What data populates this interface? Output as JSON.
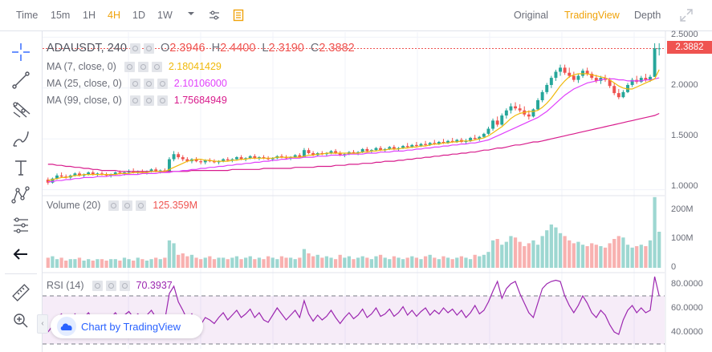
{
  "toolbar": {
    "time_label": "Time",
    "intervals": [
      "15m",
      "1H",
      "4H",
      "1D",
      "1W"
    ],
    "active_interval": "4H",
    "right_tabs": [
      "Original",
      "TradingView",
      "Depth"
    ],
    "active_right_tab": "TradingView"
  },
  "legend": {
    "symbol": "ADAUSDT, 240",
    "o_label": "O",
    "o_value": "2.3946",
    "h_label": "H",
    "h_value": "2.4400",
    "l_label": "L",
    "l_value": "2.3190",
    "c_label": "C",
    "c_value": "2.3882",
    "ma7_label": "MA (7, close, 0)",
    "ma7_value": "2.18041429",
    "ma25_label": "MA (25, close, 0)",
    "ma25_value": "2.10106000",
    "ma99_label": "MA (99, close, 0)",
    "ma99_value": "1.75684949",
    "volume_label": "Volume (20)",
    "volume_value": "125.359M",
    "rsi_label": "RSI (14)",
    "rsi_value": "70.3937"
  },
  "price_axis": [
    "2.5000",
    "2.0000",
    "1.5000",
    "1.0000"
  ],
  "volume_axis": [
    "200M",
    "100M",
    "0"
  ],
  "rsi_axis": [
    "80.0000",
    "60.0000",
    "40.0000"
  ],
  "last_price": "2.3882",
  "watermark_text": "Chart by TradingView",
  "colors": {
    "up": "#26a69a",
    "down": "#ef5350",
    "ma7": "#f0b90b",
    "ma25": "#e040fb",
    "ma99": "#d81b8c",
    "rsi": "#9c27b0",
    "accent": "#f0a30a"
  },
  "chart_data": {
    "type": "candlestick",
    "price_range": [
      0.95,
      2.55
    ],
    "candles": [
      [
        1.1,
        1.12,
        1.05,
        1.07
      ],
      [
        1.07,
        1.12,
        1.06,
        1.11
      ],
      [
        1.11,
        1.16,
        1.1,
        1.14
      ],
      [
        1.14,
        1.17,
        1.12,
        1.13
      ],
      [
        1.13,
        1.15,
        1.11,
        1.12
      ],
      [
        1.12,
        1.15,
        1.1,
        1.14
      ],
      [
        1.14,
        1.17,
        1.13,
        1.16
      ],
      [
        1.16,
        1.18,
        1.13,
        1.14
      ],
      [
        1.14,
        1.16,
        1.12,
        1.15
      ],
      [
        1.15,
        1.18,
        1.14,
        1.17
      ],
      [
        1.17,
        1.19,
        1.14,
        1.15
      ],
      [
        1.15,
        1.17,
        1.13,
        1.16
      ],
      [
        1.16,
        1.18,
        1.14,
        1.15
      ],
      [
        1.15,
        1.17,
        1.13,
        1.14
      ],
      [
        1.14,
        1.16,
        1.12,
        1.15
      ],
      [
        1.15,
        1.18,
        1.14,
        1.17
      ],
      [
        1.17,
        1.19,
        1.15,
        1.16
      ],
      [
        1.16,
        1.18,
        1.14,
        1.17
      ],
      [
        1.17,
        1.2,
        1.15,
        1.18
      ],
      [
        1.18,
        1.21,
        1.16,
        1.17
      ],
      [
        1.17,
        1.19,
        1.15,
        1.18
      ],
      [
        1.18,
        1.2,
        1.16,
        1.17
      ],
      [
        1.17,
        1.19,
        1.15,
        1.18
      ],
      [
        1.18,
        1.21,
        1.17,
        1.2
      ],
      [
        1.2,
        1.22,
        1.17,
        1.18
      ],
      [
        1.18,
        1.2,
        1.16,
        1.19
      ],
      [
        1.19,
        1.21,
        1.17,
        1.18
      ],
      [
        1.18,
        1.32,
        1.18,
        1.3
      ],
      [
        1.3,
        1.38,
        1.28,
        1.35
      ],
      [
        1.35,
        1.37,
        1.3,
        1.32
      ],
      [
        1.32,
        1.34,
        1.28,
        1.3
      ],
      [
        1.3,
        1.32,
        1.27,
        1.28
      ],
      [
        1.28,
        1.31,
        1.26,
        1.3
      ],
      [
        1.3,
        1.32,
        1.27,
        1.28
      ],
      [
        1.28,
        1.3,
        1.25,
        1.27
      ],
      [
        1.27,
        1.3,
        1.25,
        1.29
      ],
      [
        1.29,
        1.31,
        1.27,
        1.28
      ],
      [
        1.28,
        1.3,
        1.26,
        1.27
      ],
      [
        1.27,
        1.29,
        1.25,
        1.28
      ],
      [
        1.28,
        1.31,
        1.27,
        1.3
      ],
      [
        1.3,
        1.32,
        1.28,
        1.29
      ],
      [
        1.29,
        1.31,
        1.27,
        1.3
      ],
      [
        1.3,
        1.33,
        1.29,
        1.32
      ],
      [
        1.32,
        1.34,
        1.29,
        1.3
      ],
      [
        1.3,
        1.32,
        1.28,
        1.31
      ],
      [
        1.31,
        1.34,
        1.3,
        1.33
      ],
      [
        1.33,
        1.35,
        1.3,
        1.31
      ],
      [
        1.31,
        1.33,
        1.29,
        1.32
      ],
      [
        1.32,
        1.34,
        1.3,
        1.31
      ],
      [
        1.31,
        1.33,
        1.29,
        1.3
      ],
      [
        1.3,
        1.32,
        1.28,
        1.31
      ],
      [
        1.31,
        1.34,
        1.3,
        1.33
      ],
      [
        1.33,
        1.35,
        1.31,
        1.32
      ],
      [
        1.32,
        1.34,
        1.3,
        1.31
      ],
      [
        1.31,
        1.33,
        1.29,
        1.32
      ],
      [
        1.32,
        1.35,
        1.31,
        1.34
      ],
      [
        1.34,
        1.36,
        1.31,
        1.32
      ],
      [
        1.32,
        1.41,
        1.32,
        1.39
      ],
      [
        1.39,
        1.41,
        1.35,
        1.36
      ],
      [
        1.36,
        1.38,
        1.33,
        1.34
      ],
      [
        1.34,
        1.37,
        1.33,
        1.36
      ],
      [
        1.36,
        1.38,
        1.34,
        1.35
      ],
      [
        1.35,
        1.37,
        1.33,
        1.36
      ],
      [
        1.36,
        1.39,
        1.35,
        1.38
      ],
      [
        1.38,
        1.4,
        1.35,
        1.36
      ],
      [
        1.36,
        1.38,
        1.33,
        1.34
      ],
      [
        1.34,
        1.36,
        1.32,
        1.35
      ],
      [
        1.35,
        1.38,
        1.34,
        1.37
      ],
      [
        1.37,
        1.39,
        1.35,
        1.36
      ],
      [
        1.36,
        1.38,
        1.34,
        1.37
      ],
      [
        1.37,
        1.41,
        1.36,
        1.4
      ],
      [
        1.4,
        1.42,
        1.37,
        1.38
      ],
      [
        1.38,
        1.4,
        1.36,
        1.39
      ],
      [
        1.39,
        1.42,
        1.38,
        1.41
      ],
      [
        1.41,
        1.43,
        1.38,
        1.39
      ],
      [
        1.39,
        1.41,
        1.37,
        1.4
      ],
      [
        1.4,
        1.43,
        1.39,
        1.42
      ],
      [
        1.42,
        1.44,
        1.39,
        1.4
      ],
      [
        1.4,
        1.42,
        1.38,
        1.41
      ],
      [
        1.41,
        1.44,
        1.4,
        1.43
      ],
      [
        1.43,
        1.46,
        1.41,
        1.42
      ],
      [
        1.42,
        1.45,
        1.41,
        1.44
      ],
      [
        1.44,
        1.47,
        1.42,
        1.43
      ],
      [
        1.43,
        1.46,
        1.42,
        1.45
      ],
      [
        1.45,
        1.48,
        1.43,
        1.44
      ],
      [
        1.44,
        1.47,
        1.43,
        1.46
      ],
      [
        1.46,
        1.49,
        1.44,
        1.45
      ],
      [
        1.45,
        1.48,
        1.44,
        1.47
      ],
      [
        1.47,
        1.5,
        1.45,
        1.46
      ],
      [
        1.46,
        1.49,
        1.45,
        1.48
      ],
      [
        1.48,
        1.51,
        1.46,
        1.47
      ],
      [
        1.47,
        1.5,
        1.46,
        1.49
      ],
      [
        1.49,
        1.51,
        1.46,
        1.47
      ],
      [
        1.47,
        1.5,
        1.45,
        1.48
      ],
      [
        1.48,
        1.52,
        1.47,
        1.51
      ],
      [
        1.51,
        1.54,
        1.49,
        1.5
      ],
      [
        1.5,
        1.53,
        1.48,
        1.52
      ],
      [
        1.52,
        1.56,
        1.51,
        1.55
      ],
      [
        1.55,
        1.62,
        1.54,
        1.6
      ],
      [
        1.6,
        1.7,
        1.58,
        1.68
      ],
      [
        1.68,
        1.72,
        1.62,
        1.64
      ],
      [
        1.64,
        1.75,
        1.63,
        1.73
      ],
      [
        1.73,
        1.8,
        1.7,
        1.78
      ],
      [
        1.78,
        1.85,
        1.75,
        1.82
      ],
      [
        1.82,
        1.86,
        1.78,
        1.8
      ],
      [
        1.8,
        1.84,
        1.76,
        1.78
      ],
      [
        1.78,
        1.82,
        1.72,
        1.74
      ],
      [
        1.74,
        1.78,
        1.69,
        1.72
      ],
      [
        1.72,
        1.8,
        1.71,
        1.79
      ],
      [
        1.79,
        1.9,
        1.78,
        1.88
      ],
      [
        1.88,
        1.98,
        1.86,
        1.96
      ],
      [
        1.96,
        2.05,
        1.94,
        2.03
      ],
      [
        2.03,
        2.12,
        2.0,
        2.1
      ],
      [
        2.1,
        2.18,
        2.07,
        2.16
      ],
      [
        2.16,
        2.23,
        2.12,
        2.2
      ],
      [
        2.2,
        2.23,
        2.13,
        2.15
      ],
      [
        2.15,
        2.2,
        2.1,
        2.12
      ],
      [
        2.12,
        2.16,
        2.06,
        2.08
      ],
      [
        2.08,
        2.14,
        2.05,
        2.12
      ],
      [
        2.12,
        2.19,
        2.1,
        2.17
      ],
      [
        2.17,
        2.2,
        2.12,
        2.14
      ],
      [
        2.14,
        2.16,
        2.08,
        2.1
      ],
      [
        2.1,
        2.13,
        2.05,
        2.07
      ],
      [
        2.07,
        2.12,
        2.04,
        2.1
      ],
      [
        2.1,
        2.13,
        2.06,
        2.08
      ],
      [
        2.08,
        2.1,
        2.0,
        2.02
      ],
      [
        2.02,
        2.05,
        1.93,
        1.95
      ],
      [
        1.95,
        1.99,
        1.89,
        1.91
      ],
      [
        1.91,
        1.98,
        1.9,
        1.96
      ],
      [
        1.96,
        2.05,
        1.95,
        2.03
      ],
      [
        2.03,
        2.1,
        2.01,
        2.08
      ],
      [
        2.08,
        2.12,
        2.04,
        2.06
      ],
      [
        2.06,
        2.12,
        2.05,
        2.1
      ],
      [
        2.1,
        2.14,
        2.06,
        2.08
      ],
      [
        2.08,
        2.13,
        2.06,
        2.11
      ],
      [
        2.11,
        2.44,
        2.11,
        2.39
      ],
      [
        2.39,
        2.44,
        2.32,
        2.39
      ]
    ],
    "ma7": [
      1.09,
      1.1,
      1.11,
      1.12,
      1.12,
      1.13,
      1.14,
      1.14,
      1.15,
      1.15,
      1.15,
      1.15,
      1.15,
      1.15,
      1.15,
      1.15,
      1.16,
      1.16,
      1.16,
      1.17,
      1.17,
      1.17,
      1.17,
      1.18,
      1.18,
      1.18,
      1.18,
      1.2,
      1.22,
      1.24,
      1.26,
      1.28,
      1.29,
      1.3,
      1.3,
      1.29,
      1.29,
      1.28,
      1.28,
      1.28,
      1.28,
      1.29,
      1.29,
      1.3,
      1.3,
      1.31,
      1.31,
      1.31,
      1.31,
      1.31,
      1.31,
      1.32,
      1.32,
      1.32,
      1.32,
      1.32,
      1.32,
      1.33,
      1.34,
      1.34,
      1.35,
      1.35,
      1.36,
      1.36,
      1.36,
      1.36,
      1.36,
      1.36,
      1.36,
      1.36,
      1.37,
      1.37,
      1.38,
      1.38,
      1.39,
      1.39,
      1.4,
      1.4,
      1.4,
      1.41,
      1.41,
      1.42,
      1.42,
      1.43,
      1.43,
      1.44,
      1.45,
      1.45,
      1.46,
      1.46,
      1.47,
      1.47,
      1.48,
      1.48,
      1.48,
      1.49,
      1.5,
      1.51,
      1.53,
      1.56,
      1.59,
      1.62,
      1.66,
      1.7,
      1.73,
      1.75,
      1.76,
      1.77,
      1.77,
      1.78,
      1.81,
      1.85,
      1.9,
      1.96,
      2.02,
      2.07,
      2.11,
      2.13,
      2.14,
      2.14,
      2.14,
      2.13,
      2.12,
      2.11,
      2.1,
      2.08,
      2.05,
      2.02,
      2.0,
      1.99,
      1.99,
      2.01,
      2.03,
      2.05,
      2.07,
      2.09,
      2.18
    ],
    "ma25": [
      1.08,
      1.08,
      1.09,
      1.09,
      1.1,
      1.1,
      1.11,
      1.11,
      1.12,
      1.12,
      1.12,
      1.13,
      1.13,
      1.13,
      1.14,
      1.14,
      1.14,
      1.15,
      1.15,
      1.15,
      1.15,
      1.16,
      1.16,
      1.16,
      1.16,
      1.17,
      1.17,
      1.17,
      1.18,
      1.18,
      1.19,
      1.19,
      1.2,
      1.2,
      1.21,
      1.21,
      1.22,
      1.22,
      1.23,
      1.23,
      1.24,
      1.24,
      1.25,
      1.25,
      1.26,
      1.26,
      1.27,
      1.27,
      1.28,
      1.28,
      1.29,
      1.29,
      1.3,
      1.3,
      1.31,
      1.31,
      1.31,
      1.32,
      1.32,
      1.32,
      1.33,
      1.33,
      1.33,
      1.34,
      1.34,
      1.34,
      1.34,
      1.35,
      1.35,
      1.35,
      1.35,
      1.36,
      1.36,
      1.36,
      1.37,
      1.37,
      1.37,
      1.38,
      1.38,
      1.38,
      1.39,
      1.39,
      1.4,
      1.4,
      1.41,
      1.41,
      1.42,
      1.42,
      1.43,
      1.43,
      1.44,
      1.44,
      1.45,
      1.45,
      1.46,
      1.46,
      1.47,
      1.48,
      1.49,
      1.51,
      1.53,
      1.55,
      1.57,
      1.59,
      1.61,
      1.63,
      1.65,
      1.67,
      1.69,
      1.71,
      1.74,
      1.77,
      1.81,
      1.85,
      1.89,
      1.93,
      1.96,
      1.99,
      2.01,
      2.03,
      2.05,
      2.06,
      2.07,
      2.08,
      2.09,
      2.09,
      2.09,
      2.08,
      2.08,
      2.07,
      2.07,
      2.07,
      2.07,
      2.08,
      2.08,
      2.09,
      2.1
    ],
    "ma99": [
      1.25,
      1.25,
      1.24,
      1.24,
      1.23,
      1.23,
      1.22,
      1.22,
      1.21,
      1.21,
      1.2,
      1.2,
      1.19,
      1.19,
      1.19,
      1.19,
      1.18,
      1.18,
      1.18,
      1.18,
      1.18,
      1.18,
      1.18,
      1.18,
      1.18,
      1.18,
      1.18,
      1.18,
      1.18,
      1.18,
      1.18,
      1.18,
      1.19,
      1.19,
      1.19,
      1.19,
      1.19,
      1.19,
      1.19,
      1.19,
      1.19,
      1.2,
      1.2,
      1.2,
      1.2,
      1.2,
      1.2,
      1.2,
      1.21,
      1.21,
      1.21,
      1.21,
      1.21,
      1.21,
      1.21,
      1.22,
      1.22,
      1.22,
      1.22,
      1.22,
      1.23,
      1.23,
      1.23,
      1.23,
      1.24,
      1.24,
      1.24,
      1.25,
      1.25,
      1.25,
      1.26,
      1.26,
      1.26,
      1.27,
      1.27,
      1.28,
      1.28,
      1.28,
      1.29,
      1.29,
      1.3,
      1.3,
      1.31,
      1.31,
      1.32,
      1.32,
      1.33,
      1.33,
      1.34,
      1.34,
      1.35,
      1.35,
      1.36,
      1.36,
      1.37,
      1.37,
      1.38,
      1.39,
      1.39,
      1.4,
      1.41,
      1.41,
      1.42,
      1.43,
      1.44,
      1.44,
      1.45,
      1.46,
      1.47,
      1.47,
      1.48,
      1.49,
      1.5,
      1.51,
      1.52,
      1.53,
      1.54,
      1.55,
      1.56,
      1.57,
      1.58,
      1.59,
      1.6,
      1.61,
      1.62,
      1.63,
      1.64,
      1.65,
      1.66,
      1.67,
      1.68,
      1.69,
      1.7,
      1.71,
      1.72,
      1.73,
      1.75
    ],
    "volume": [
      35,
      40,
      30,
      35,
      25,
      30,
      30,
      35,
      25,
      30,
      25,
      30,
      30,
      25,
      30,
      30,
      25,
      35,
      30,
      25,
      35,
      30,
      25,
      30,
      35,
      30,
      35,
      95,
      85,
      45,
      50,
      40,
      45,
      35,
      30,
      35,
      40,
      30,
      35,
      35,
      30,
      35,
      40,
      30,
      35,
      40,
      30,
      35,
      30,
      40,
      35,
      30,
      40,
      35,
      35,
      30,
      35,
      65,
      50,
      40,
      45,
      35,
      40,
      35,
      30,
      45,
      35,
      40,
      30,
      35,
      40,
      35,
      30,
      40,
      45,
      35,
      30,
      40,
      35,
      30,
      35,
      40,
      35,
      30,
      40,
      45,
      35,
      30,
      40,
      35,
      30,
      35,
      40,
      35,
      30,
      45,
      40,
      45,
      55,
      95,
      100,
      80,
      90,
      110,
      105,
      90,
      75,
      85,
      95,
      80,
      110,
      130,
      150,
      140,
      120,
      110,
      95,
      85,
      90,
      80,
      75,
      85,
      80,
      75,
      70,
      85,
      100,
      110,
      105,
      80,
      70,
      75,
      80,
      75,
      95,
      245,
      125
    ],
    "rsi": [
      40,
      45,
      52,
      55,
      48,
      50,
      55,
      50,
      52,
      56,
      50,
      53,
      49,
      47,
      52,
      56,
      50,
      54,
      57,
      52,
      55,
      50,
      54,
      58,
      52,
      54,
      50,
      72,
      78,
      65,
      58,
      50,
      55,
      48,
      46,
      52,
      50,
      47,
      52,
      56,
      50,
      54,
      58,
      52,
      55,
      59,
      52,
      56,
      50,
      48,
      54,
      60,
      55,
      50,
      54,
      58,
      52,
      66,
      55,
      49,
      54,
      50,
      53,
      58,
      52,
      47,
      52,
      56,
      51,
      54,
      59,
      52,
      55,
      60,
      53,
      55,
      59,
      53,
      56,
      61,
      54,
      58,
      53,
      57,
      60,
      54,
      58,
      55,
      60,
      56,
      59,
      54,
      58,
      52,
      56,
      62,
      55,
      58,
      65,
      74,
      82,
      68,
      76,
      80,
      82,
      72,
      64,
      56,
      52,
      64,
      76,
      80,
      82,
      83,
      82,
      70,
      62,
      56,
      62,
      70,
      64,
      56,
      52,
      58,
      54,
      46,
      40,
      38,
      50,
      58,
      62,
      56,
      60,
      56,
      58,
      86,
      70
    ]
  }
}
